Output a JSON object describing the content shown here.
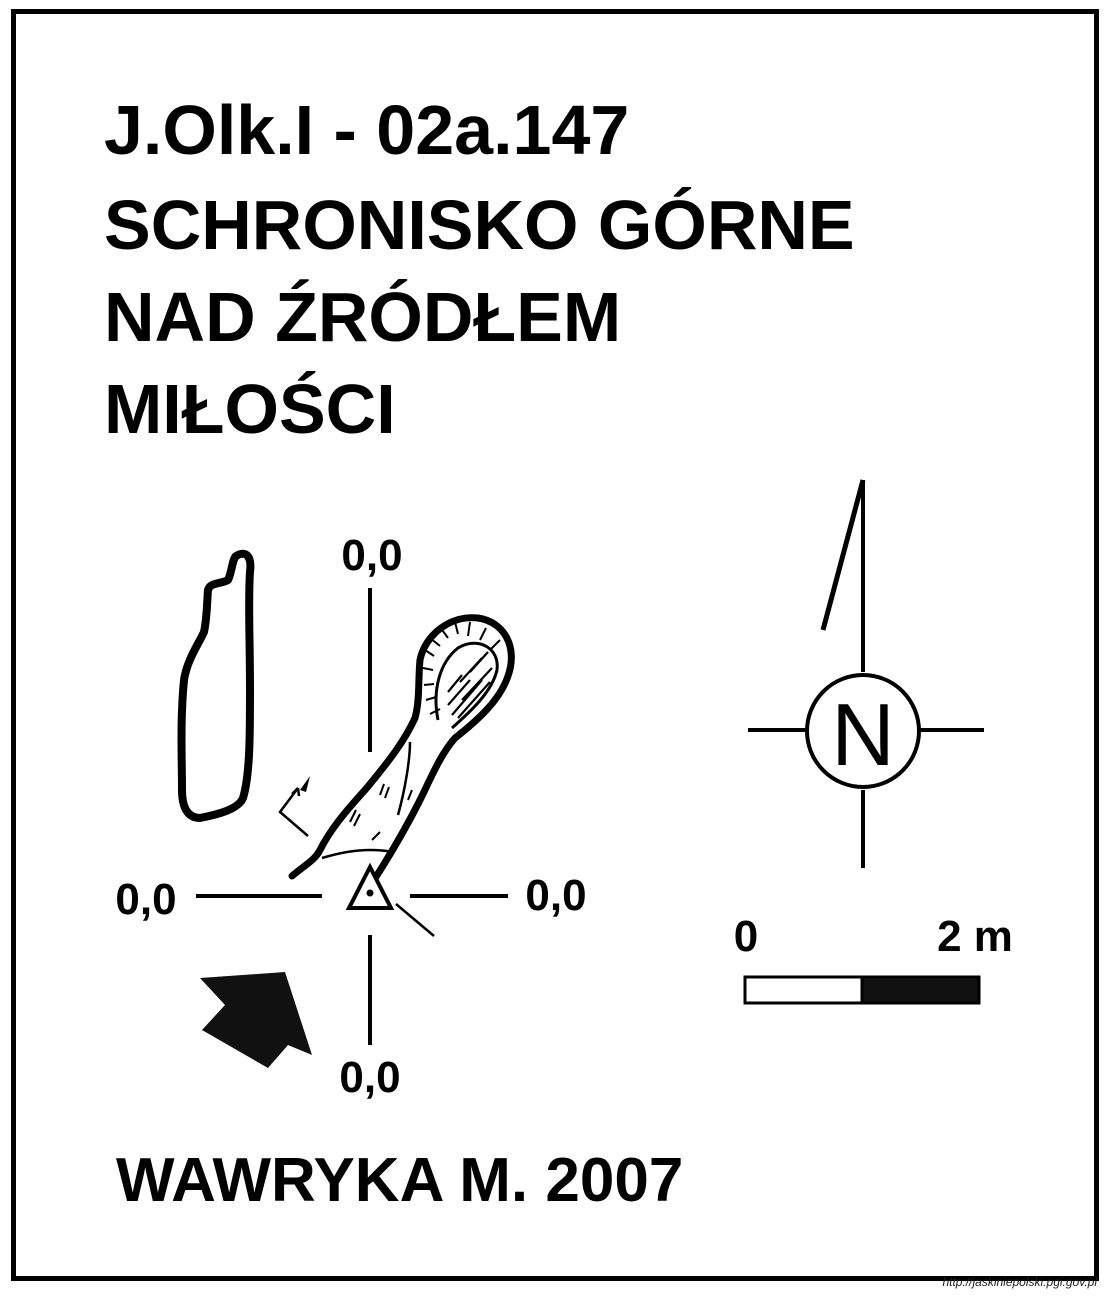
{
  "title": {
    "code": "J.Olk.I - 02a.147",
    "name_line1": "SCHRONISKO GÓRNE",
    "name_line2": "NAD ŹRÓDŁEM",
    "name_line3": "MIŁOŚCI"
  },
  "levels": {
    "top": "0,0",
    "left": "0,0",
    "right": "0,0",
    "bottom": "0,0"
  },
  "north_arrow": {
    "label": "N"
  },
  "scale_bar": {
    "start_label": "0",
    "end_label": "2 m"
  },
  "author": "WAWRYKA M. 2007",
  "source": "http://jaskiniepolski.pgi.gov.pl"
}
